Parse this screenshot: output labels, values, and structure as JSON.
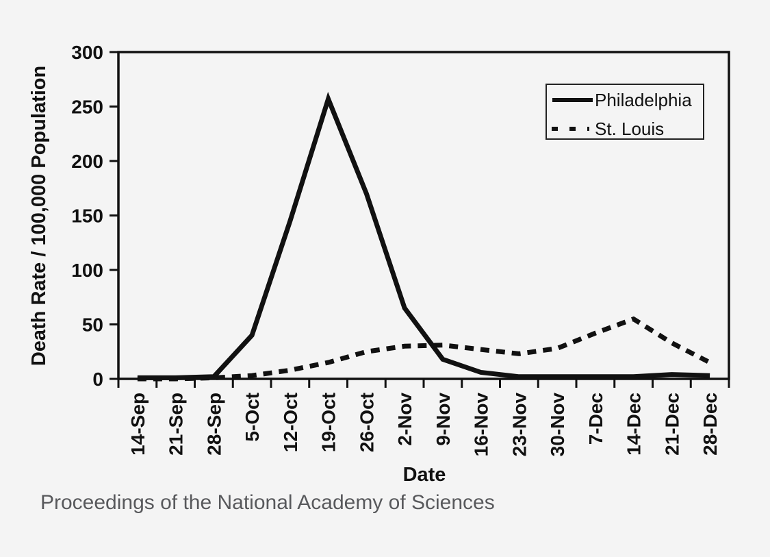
{
  "chart_data": {
    "type": "line",
    "title": "",
    "xlabel": "Date",
    "ylabel": "Death Rate / 100,000 Population",
    "categories": [
      "14-Sep",
      "21-Sep",
      "28-Sep",
      "5-Oct",
      "12-Oct",
      "19-Oct",
      "26-Oct",
      "2-Nov",
      "9-Nov",
      "16-Nov",
      "23-Nov",
      "30-Nov",
      "7-Dec",
      "14-Dec",
      "21-Dec",
      "28-Dec"
    ],
    "series": [
      {
        "name": "Philadelphia",
        "line_style": "solid",
        "color": "#111111",
        "values": [
          1,
          1,
          2,
          40,
          145,
          257,
          170,
          65,
          18,
          6,
          2,
          2,
          2,
          2,
          4,
          3
        ]
      },
      {
        "name": "St. Louis",
        "line_style": "dashed",
        "color": "#111111",
        "values": [
          0,
          0,
          1,
          3,
          8,
          15,
          25,
          30,
          31,
          27,
          23,
          28,
          42,
          55,
          33,
          15
        ]
      }
    ],
    "ylim": [
      0,
      300
    ],
    "ytick_step": 50,
    "yticks": [
      0,
      50,
      100,
      150,
      200,
      250,
      300
    ],
    "grid": false,
    "legend_position": "top-right"
  },
  "caption": {
    "text": "Proceedings of the National Academy of Sciences"
  },
  "colors": {
    "line": "#111111",
    "caption_text": "#58595c",
    "background": "#f4f4f4"
  }
}
